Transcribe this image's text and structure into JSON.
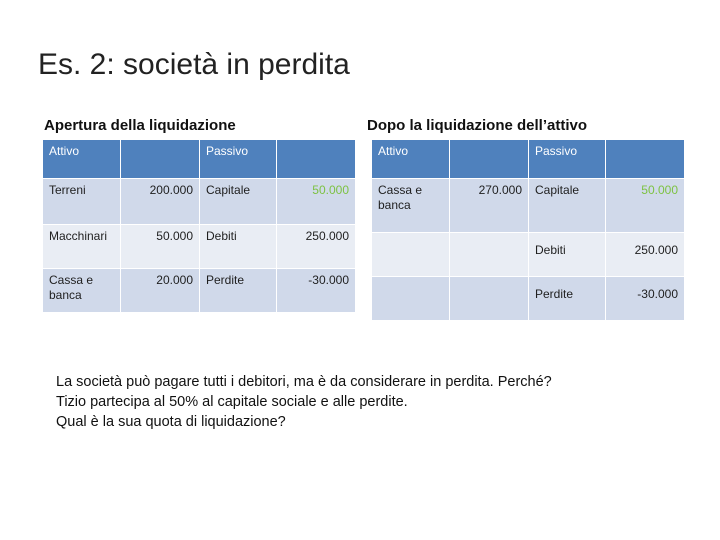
{
  "title": "Es. 2: società in perdita",
  "left_table": {
    "heading": "Apertura della liquidazione",
    "header": [
      "Attivo",
      "",
      "Passivo",
      ""
    ],
    "rows": [
      [
        "Terreni",
        "200.000",
        "Capitale",
        "50.000"
      ],
      [
        "Macchinari",
        "50.000",
        "Debiti",
        "250.000"
      ],
      [
        "Cassa e banca",
        "20.000",
        "Perdite",
        "-30.000"
      ]
    ]
  },
  "right_table": {
    "heading": "Dopo la liquidazione dell’attivo",
    "header": [
      "Attivo",
      "",
      "Passivo",
      ""
    ],
    "rows": [
      [
        "Cassa e banca",
        "270.000",
        "Capitale",
        "50.000"
      ],
      [
        "",
        "",
        "Debiti",
        "250.000"
      ],
      [
        "",
        "",
        "Perdite",
        "-30.000"
      ]
    ]
  },
  "question": {
    "line1": "La società può pagare tutti i debitori, ma è da considerare in perdita. Perché?",
    "line2": "Tizio partecipa al 50% al capitale sociale e alle perdite.",
    "line3": "Qual è la sua quota di liquidazione?"
  },
  "colors": {
    "header": "#4f81bd",
    "row": "#d0d9ea",
    "row_alt": "#e9edf4",
    "capital_value": "#7dc242"
  }
}
